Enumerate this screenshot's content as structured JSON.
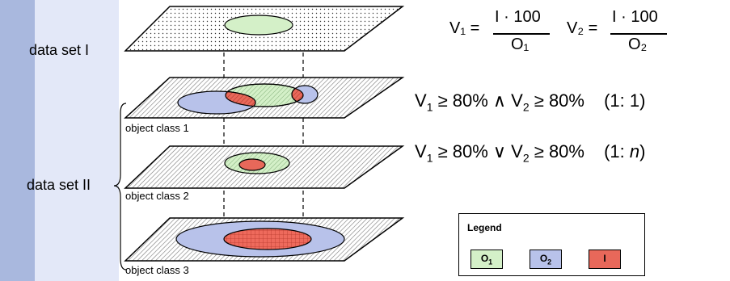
{
  "labels": {
    "data_set_1": "data set I",
    "data_set_2": "data set II",
    "object_class_1": "object class 1",
    "object_class_2": "object class 2",
    "object_class_3": "object class 3"
  },
  "formulas": {
    "v1_lhs": "V₁ =",
    "v1_num": "I · 100",
    "v1_den": "O₁",
    "v2_lhs": "V₂ =",
    "v2_num": "I · 100",
    "v2_den": "O₂"
  },
  "conditions": [
    {
      "v1": "V",
      "s1": "1",
      "op1": " ≥ 80% ∧ ",
      "v2": "V",
      "s2": "2",
      "op2": " ≥ 80%",
      "rel_open": "(1:",
      "rel_value": " 1",
      "rel_close": ")"
    },
    {
      "v1": "V",
      "s1": "1",
      "op1": " ≥ 80% ∨ ",
      "v2": "V",
      "s2": "2",
      "op2": " ≥ 80%",
      "rel_open": "(1:",
      "rel_value": " n",
      "rel_close": ")"
    }
  ],
  "legend": {
    "title": "Legend",
    "items": [
      {
        "symbol": "O",
        "sub": "1",
        "color": "#d4f0c8"
      },
      {
        "symbol": "O",
        "sub": "2",
        "color": "#b8c2ea"
      },
      {
        "symbol": "I",
        "sub": "",
        "color": "#e8685a"
      }
    ]
  },
  "colors": {
    "green": "#d4f0c8",
    "blue": "#b8c2ea",
    "red": "#e8685a",
    "band_dark": "#a9b8de",
    "band_light": "#e3e8f8"
  }
}
